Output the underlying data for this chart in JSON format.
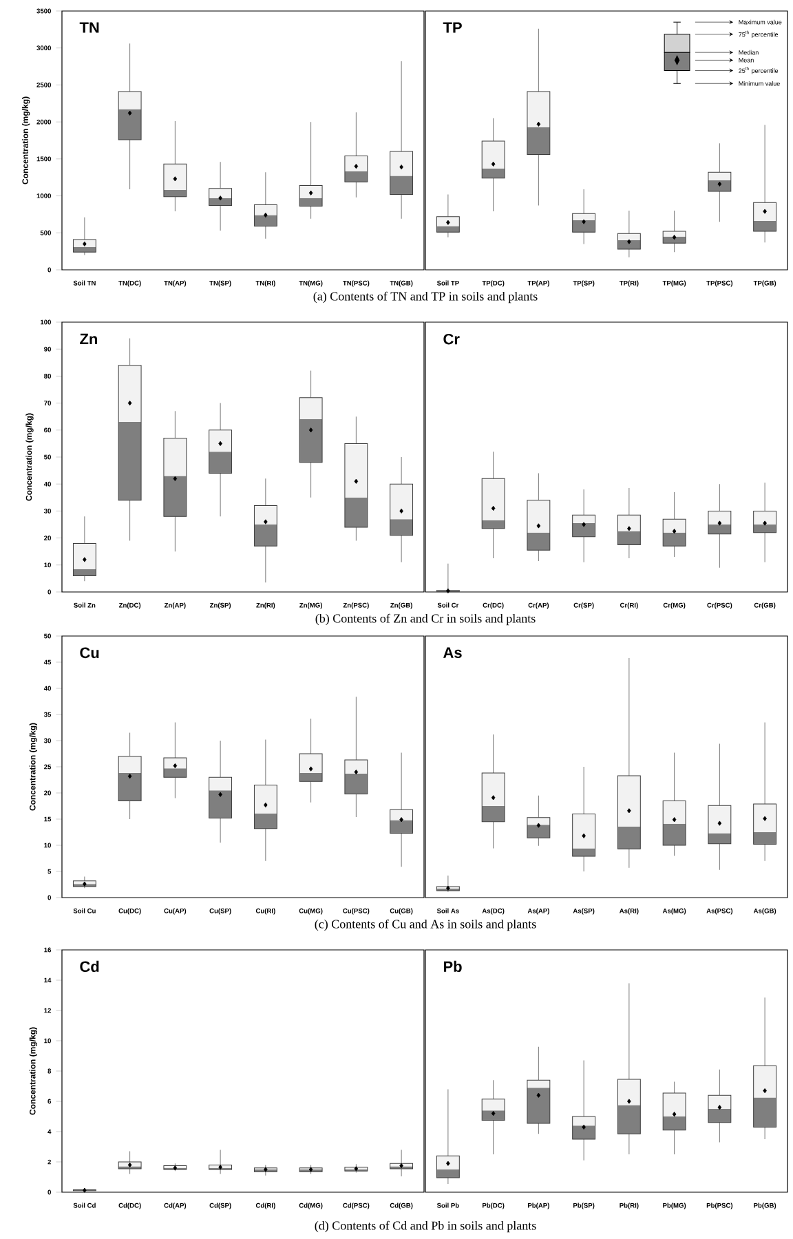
{
  "chart_data": [
    {
      "type": "box",
      "title": "TN",
      "ylabel": "Concentration (mg/kg)",
      "categories": [
        "Soil TN",
        "TN(DC)",
        "TN(AP)",
        "TN(SP)",
        "TN(RI)",
        "TN(MG)",
        "TN(PSC)",
        "TN(GB)"
      ],
      "ylim": [
        0,
        3500
      ],
      "yticks": [
        0,
        500,
        1000,
        1500,
        2000,
        2500,
        3000,
        3500
      ],
      "marker": "diamond",
      "annotations": [
        "(a) Contents of TN and TP in soils and plants"
      ],
      "series": [
        {
          "color": "#7f7f7f",
          "boxes": [
            {
              "low": 200,
              "q1": 240,
              "median": 310,
              "q3": 410,
              "high": 710,
              "mean": 350
            },
            {
              "low": 1090,
              "q1": 1760,
              "median": 2170,
              "q3": 2410,
              "high": 3060,
              "mean": 2120
            },
            {
              "low": 790,
              "q1": 990,
              "median": 1080,
              "q3": 1430,
              "high": 2010,
              "mean": 1230
            },
            {
              "low": 530,
              "q1": 870,
              "median": 970,
              "q3": 1100,
              "high": 1460,
              "mean": 970
            },
            {
              "low": 420,
              "q1": 590,
              "median": 740,
              "q3": 880,
              "high": 1320,
              "mean": 740
            },
            {
              "low": 690,
              "q1": 860,
              "median": 970,
              "q3": 1140,
              "high": 2000,
              "mean": 1040
            },
            {
              "low": 980,
              "q1": 1190,
              "median": 1330,
              "q3": 1540,
              "high": 2130,
              "mean": 1400
            },
            {
              "low": 690,
              "q1": 1020,
              "median": 1270,
              "q3": 1600,
              "high": 2820,
              "mean": 1390
            }
          ]
        }
      ]
    },
    {
      "type": "box",
      "title": "TP",
      "categories": [
        "Soil TP",
        "TP(DC)",
        "TP(AP)",
        "TP(SP)",
        "TP(RI)",
        "TP(MG)",
        "TP(PSC)",
        "TP(GB)"
      ],
      "ylim": [
        0,
        3500
      ],
      "tick_labels": "x",
      "marker": "diamond",
      "annotations": [
        "Maximum value",
        "75$^{th}$ percentile",
        "Median",
        "Mean",
        "25$^{th}$ percentile",
        "Minimum value"
      ],
      "series": [
        {
          "color": "#7f7f7f",
          "boxes": [
            {
              "low": 440,
              "q1": 510,
              "median": 590,
              "q3": 720,
              "high": 1020,
              "mean": 640
            },
            {
              "low": 790,
              "q1": 1240,
              "median": 1370,
              "q3": 1740,
              "high": 2050,
              "mean": 1430
            },
            {
              "low": 870,
              "q1": 1560,
              "median": 1930,
              "q3": 2410,
              "high": 3260,
              "mean": 1970
            },
            {
              "low": 350,
              "q1": 510,
              "median": 670,
              "q3": 760,
              "high": 1090,
              "mean": 650
            },
            {
              "low": 170,
              "q1": 280,
              "median": 400,
              "q3": 490,
              "high": 800,
              "mean": 380
            },
            {
              "low": 240,
              "q1": 360,
              "median": 450,
              "q3": 520,
              "high": 800,
              "mean": 440
            },
            {
              "low": 650,
              "q1": 1060,
              "median": 1210,
              "q3": 1320,
              "high": 1710,
              "mean": 1160
            },
            {
              "low": 370,
              "q1": 520,
              "median": 660,
              "q3": 910,
              "high": 1960,
              "mean": 790
            }
          ]
        }
      ]
    },
    {
      "type": "box",
      "title": "Zn",
      "ylabel": "Concentration (mg/kg)",
      "categories": [
        "Soil Zn",
        "Zn(DC)",
        "Zn(AP)",
        "Zn(SP)",
        "Zn(RI)",
        "Zn(MG)",
        "Zn(PSC)",
        "Zn(GB)"
      ],
      "ylim": [
        0,
        100
      ],
      "yticks": [
        0,
        10,
        20,
        30,
        40,
        50,
        60,
        70,
        80,
        90,
        100
      ],
      "marker": "diamond",
      "annotations": [
        "(b) Contents of Zn and Cr in soils and plants"
      ],
      "series": [
        {
          "color": "#7f7f7f",
          "boxes": [
            {
              "low": 4,
              "q1": 6,
              "median": 8.5,
              "q3": 18,
              "high": 28,
              "mean": 12
            },
            {
              "low": 19,
              "q1": 34,
              "median": 63,
              "q3": 84,
              "high": 94,
              "mean": 70
            },
            {
              "low": 15,
              "q1": 28,
              "median": 43,
              "q3": 57,
              "high": 67,
              "mean": 42
            },
            {
              "low": 28,
              "q1": 44,
              "median": 52,
              "q3": 60,
              "high": 70,
              "mean": 55
            },
            {
              "low": 3.5,
              "q1": 17,
              "median": 25,
              "q3": 32,
              "high": 42,
              "mean": 26
            },
            {
              "low": 35,
              "q1": 48,
              "median": 64,
              "q3": 72,
              "high": 82,
              "mean": 60
            },
            {
              "low": 19,
              "q1": 24,
              "median": 35,
              "q3": 55,
              "high": 65,
              "mean": 41
            },
            {
              "low": 11,
              "q1": 21,
              "median": 27,
              "q3": 40,
              "high": 50,
              "mean": 30
            }
          ]
        }
      ]
    },
    {
      "type": "box",
      "title": "Cr",
      "categories": [
        "Soil Cr",
        "Cr(DC)",
        "Cr(AP)",
        "Cr(SP)",
        "Cr(RI)",
        "Cr(MG)",
        "Cr(PSC)",
        "Cr(GB)"
      ],
      "ylim": [
        0,
        100
      ],
      "tick_labels": "x",
      "marker": "diamond",
      "series": [
        {
          "color": "#7f7f7f",
          "boxes": [
            {
              "low": 0,
              "q1": 0.2,
              "median": 0.4,
              "q3": 0.6,
              "high": 10.5,
              "mean": 0.4
            },
            {
              "low": 12.5,
              "q1": 23.5,
              "median": 26.5,
              "q3": 42,
              "high": 52,
              "mean": 31
            },
            {
              "low": 11.5,
              "q1": 15.5,
              "median": 22,
              "q3": 34,
              "high": 44,
              "mean": 24.5
            },
            {
              "low": 11,
              "q1": 20.5,
              "median": 25.5,
              "q3": 28.5,
              "high": 38,
              "mean": 25
            },
            {
              "low": 12.5,
              "q1": 17.5,
              "median": 22.5,
              "q3": 28.5,
              "high": 38.5,
              "mean": 23.5
            },
            {
              "low": 13,
              "q1": 17,
              "median": 22,
              "q3": 27,
              "high": 37,
              "mean": 22.5
            },
            {
              "low": 9,
              "q1": 21.5,
              "median": 25,
              "q3": 30,
              "high": 40,
              "mean": 25.5
            },
            {
              "low": 11,
              "q1": 22,
              "median": 25,
              "q3": 30,
              "high": 40.5,
              "mean": 25.5
            }
          ]
        }
      ]
    },
    {
      "type": "box",
      "title": "Cu",
      "ylabel": "Concentration (mg/kg)",
      "categories": [
        "Soil Cu",
        "Cu(DC)",
        "Cu(AP)",
        "Cu(SP)",
        "Cu(RI)",
        "Cu(MG)",
        "Cu(PSC)",
        "Cu(GB)"
      ],
      "ylim": [
        0,
        50
      ],
      "yticks": [
        0,
        5,
        10,
        15,
        20,
        25,
        30,
        35,
        40,
        45,
        50
      ],
      "marker": "diamond",
      "annotations": [
        "(c) Contents of Cu and As in soils and plants"
      ],
      "series": [
        {
          "color": "#7f7f7f",
          "boxes": [
            {
              "low": 1.8,
              "q1": 2.1,
              "median": 2.6,
              "q3": 3.2,
              "high": 4,
              "mean": 2.6
            },
            {
              "low": 15,
              "q1": 18.5,
              "median": 23.8,
              "q3": 27,
              "high": 31.5,
              "mean": 23.2
            },
            {
              "low": 19,
              "q1": 23,
              "median": 24.7,
              "q3": 26.7,
              "high": 33.5,
              "mean": 25.2
            },
            {
              "low": 10.5,
              "q1": 15.2,
              "median": 20.5,
              "q3": 23,
              "high": 30,
              "mean": 19.7
            },
            {
              "low": 7,
              "q1": 13.2,
              "median": 16.1,
              "q3": 21.5,
              "high": 30.2,
              "mean": 17.7
            },
            {
              "low": 18.2,
              "q1": 22.2,
              "median": 23.8,
              "q3": 27.5,
              "high": 34.2,
              "mean": 24.6
            },
            {
              "low": 15.4,
              "q1": 19.8,
              "median": 23.7,
              "q3": 26.3,
              "high": 38.4,
              "mean": 24
            },
            {
              "low": 5.9,
              "q1": 12.3,
              "median": 14.8,
              "q3": 16.8,
              "high": 27.7,
              "mean": 14.9
            }
          ]
        }
      ]
    },
    {
      "type": "box",
      "title": "As",
      "categories": [
        "Soil As",
        "As(DC)",
        "As(AP)",
        "As(SP)",
        "As(RI)",
        "As(MG)",
        "As(PSC)",
        "As(GB)"
      ],
      "ylim": [
        0,
        50
      ],
      "tick_labels": "x",
      "marker": "diamond",
      "series": [
        {
          "color": "#7f7f7f",
          "boxes": [
            {
              "low": 1.1,
              "q1": 1.3,
              "median": 1.7,
              "q3": 2.1,
              "high": 4.2,
              "mean": 1.8
            },
            {
              "low": 9.4,
              "q1": 14.5,
              "median": 17.5,
              "q3": 23.8,
              "high": 31.2,
              "mean": 19.1
            },
            {
              "low": 9.9,
              "q1": 11.4,
              "median": 13.9,
              "q3": 15.3,
              "high": 19.5,
              "mean": 13.8
            },
            {
              "low": 5,
              "q1": 7.9,
              "median": 9.4,
              "q3": 16,
              "high": 25,
              "mean": 11.8
            },
            {
              "low": 5.7,
              "q1": 9.3,
              "median": 13.6,
              "q3": 23.3,
              "high": 45.8,
              "mean": 16.6
            },
            {
              "low": 8,
              "q1": 10,
              "median": 14.1,
              "q3": 18.5,
              "high": 27.7,
              "mean": 14.9
            },
            {
              "low": 5.3,
              "q1": 10.3,
              "median": 12.3,
              "q3": 17.6,
              "high": 29.4,
              "mean": 14.2
            },
            {
              "low": 7,
              "q1": 10.2,
              "median": 12.5,
              "q3": 17.9,
              "high": 33.5,
              "mean": 15.1
            }
          ]
        }
      ]
    },
    {
      "type": "box",
      "title": "Cd",
      "ylabel": "Concentration (mg/kg)",
      "categories": [
        "Soil Cd",
        "Cd(DC)",
        "Cd(AP)",
        "Cd(SP)",
        "Cd(RI)",
        "Cd(MG)",
        "Cd(PSC)",
        "Cd(GB)"
      ],
      "ylim": [
        0,
        16
      ],
      "yticks": [
        0,
        2,
        4,
        6,
        8,
        10,
        12,
        14,
        16
      ],
      "marker": "diamond",
      "annotations": [
        "(d) Contents of Cd and Pb in soils and plants"
      ],
      "series": [
        {
          "color": "#7f7f7f",
          "boxes": [
            {
              "low": 0.08,
              "q1": 0.1,
              "median": 0.12,
              "q3": 0.16,
              "high": 0.2,
              "mean": 0.13
            },
            {
              "low": 1.2,
              "q1": 1.55,
              "median": 1.7,
              "q3": 2.0,
              "high": 2.7,
              "mean": 1.8
            },
            {
              "low": 1.4,
              "q1": 1.5,
              "median": 1.6,
              "q3": 1.75,
              "high": 1.9,
              "mean": 1.6
            },
            {
              "low": 1.2,
              "q1": 1.5,
              "median": 1.6,
              "q3": 1.8,
              "high": 2.8,
              "mean": 1.65
            },
            {
              "low": 1.1,
              "q1": 1.35,
              "median": 1.5,
              "q3": 1.6,
              "high": 1.8,
              "mean": 1.5
            },
            {
              "low": 1.2,
              "q1": 1.35,
              "median": 1.5,
              "q3": 1.6,
              "high": 1.8,
              "mean": 1.5
            },
            {
              "low": 1.3,
              "q1": 1.4,
              "median": 1.5,
              "q3": 1.65,
              "high": 1.85,
              "mean": 1.55
            },
            {
              "low": 1.05,
              "q1": 1.55,
              "median": 1.7,
              "q3": 1.9,
              "high": 2.8,
              "mean": 1.75
            }
          ]
        }
      ]
    },
    {
      "type": "box",
      "title": "Pb",
      "categories": [
        "Soil Pb",
        "Pb(DC)",
        "Pb(AP)",
        "Pb(SP)",
        "Pb(RI)",
        "Pb(MG)",
        "Pb(PSC)",
        "Pb(GB)"
      ],
      "ylim": [
        0,
        16
      ],
      "tick_labels": "x",
      "marker": "diamond",
      "series": [
        {
          "color": "#7f7f7f",
          "boxes": [
            {
              "low": 0.55,
              "q1": 0.95,
              "median": 1.5,
              "q3": 2.4,
              "high": 6.8,
              "mean": 1.9
            },
            {
              "low": 2.5,
              "q1": 4.75,
              "median": 5.4,
              "q3": 6.15,
              "high": 7.4,
              "mean": 5.2
            },
            {
              "low": 3.85,
              "q1": 4.55,
              "median": 6.9,
              "q3": 7.4,
              "high": 9.6,
              "mean": 6.4
            },
            {
              "low": 2.1,
              "q1": 3.5,
              "median": 4.4,
              "q3": 5.0,
              "high": 8.7,
              "mean": 4.3
            },
            {
              "low": 2.5,
              "q1": 3.85,
              "median": 5.75,
              "q3": 7.45,
              "high": 13.8,
              "mean": 6.0
            },
            {
              "low": 2.5,
              "q1": 4.1,
              "median": 5.0,
              "q3": 6.55,
              "high": 7.3,
              "mean": 5.15
            },
            {
              "low": 3.3,
              "q1": 4.6,
              "median": 5.5,
              "q3": 6.4,
              "high": 8.1,
              "mean": 5.6
            },
            {
              "low": 3.5,
              "q1": 4.3,
              "median": 6.25,
              "q3": 8.35,
              "high": 12.85,
              "mean": 6.7
            }
          ]
        }
      ]
    }
  ]
}
